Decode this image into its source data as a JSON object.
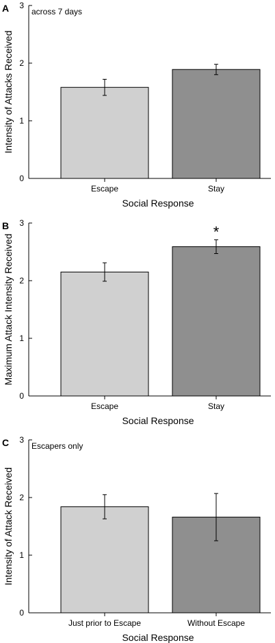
{
  "chart_data": [
    {
      "type": "bar",
      "panel_label": "A",
      "annotation": "across 7 days",
      "ylabel": "Intensity of Attacks Received",
      "xlabel": "Social Response",
      "ylim": [
        0,
        3
      ],
      "yticks": [
        "0",
        "1",
        "2",
        "3"
      ],
      "categories": [
        "Escape",
        "Stay"
      ],
      "values": [
        1.58,
        1.89
      ],
      "errors": [
        0.14,
        0.09
      ],
      "bar_colors": [
        "#d0d0d0",
        "#8f8f8f"
      ],
      "significance": [
        "",
        ""
      ]
    },
    {
      "type": "bar",
      "panel_label": "B",
      "annotation": "",
      "ylabel": "Maximum Attack Intensity Received",
      "xlabel": "Social Response",
      "ylim": [
        0,
        3
      ],
      "yticks": [
        "0",
        "1",
        "2",
        "3"
      ],
      "categories": [
        "Escape",
        "Stay"
      ],
      "values": [
        2.15,
        2.59
      ],
      "errors": [
        0.16,
        0.12
      ],
      "bar_colors": [
        "#d0d0d0",
        "#8f8f8f"
      ],
      "significance": [
        "",
        "*"
      ]
    },
    {
      "type": "bar",
      "panel_label": "C",
      "annotation": "Escapers only",
      "ylabel": "Intensity of Attack Received",
      "xlabel": "Social Response",
      "ylim": [
        0,
        3
      ],
      "yticks": [
        "0",
        "1",
        "2",
        "3"
      ],
      "categories": [
        "Just prior to Escape",
        "Without Escape"
      ],
      "values": [
        1.84,
        1.66
      ],
      "errors": [
        0.21,
        0.41
      ],
      "bar_colors": [
        "#d0d0d0",
        "#8f8f8f"
      ],
      "significance": [
        "",
        ""
      ]
    }
  ]
}
